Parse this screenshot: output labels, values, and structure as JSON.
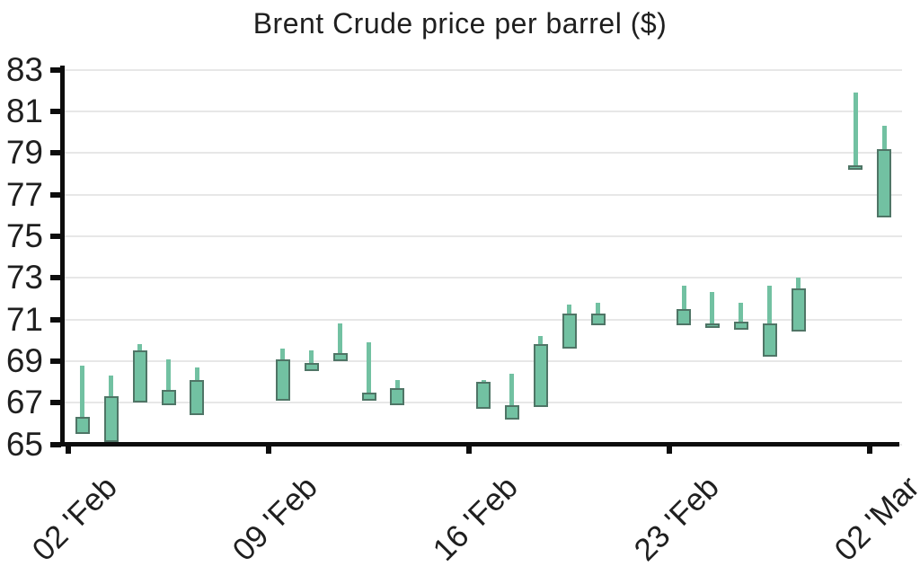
{
  "chart_title": "Brent Crude price per barrel ($)",
  "colors": {
    "background": "#ffffff",
    "candle_fill": "#72c1a2",
    "candle_border": "#4f7566",
    "axis": "#0d0d0d",
    "grid": "#e7e7e7",
    "text": "#1f1f1f"
  },
  "chart_data": {
    "type": "candlestick",
    "title": "Brent Crude price per barrel ($)",
    "xlabel": "",
    "ylabel": "",
    "ylim": [
      65,
      83
    ],
    "y_ticks": [
      83,
      81,
      79,
      77,
      75,
      73,
      71,
      69,
      67,
      65
    ],
    "grid": "horizontal",
    "legend": "none",
    "x_axis_unit": "days offset from 02 Feb tick",
    "x_ticks": [
      {
        "day": 0,
        "label": "02 'Feb"
      },
      {
        "day": 7,
        "label": "09 'Feb"
      },
      {
        "day": 14,
        "label": "16 'Feb"
      },
      {
        "day": 21,
        "label": "23 'Feb"
      },
      {
        "day": 28,
        "label": "02 'Mar"
      }
    ],
    "candles": [
      {
        "day": 0.5,
        "high": 68.8,
        "low": 65.5,
        "body_top": 66.3,
        "body_bottom": 65.5
      },
      {
        "day": 1.5,
        "high": 68.3,
        "low": 65.1,
        "body_top": 67.3,
        "body_bottom": 65.1
      },
      {
        "day": 2.5,
        "high": 69.8,
        "low": 67.0,
        "body_top": 69.5,
        "body_bottom": 67.0
      },
      {
        "day": 3.5,
        "high": 69.1,
        "low": 66.9,
        "body_top": 67.6,
        "body_bottom": 66.9
      },
      {
        "day": 4.5,
        "high": 68.7,
        "low": 66.4,
        "body_top": 68.1,
        "body_bottom": 66.4
      },
      {
        "day": 7.5,
        "high": 69.6,
        "low": 67.1,
        "body_top": 69.1,
        "body_bottom": 67.1
      },
      {
        "day": 8.5,
        "high": 69.5,
        "low": 68.5,
        "body_top": 68.9,
        "body_bottom": 68.5
      },
      {
        "day": 9.5,
        "high": 70.8,
        "low": 69.0,
        "body_top": 69.4,
        "body_bottom": 69.0
      },
      {
        "day": 10.5,
        "high": 69.9,
        "low": 67.1,
        "body_top": 67.5,
        "body_bottom": 67.1
      },
      {
        "day": 11.5,
        "high": 68.1,
        "low": 66.9,
        "body_top": 67.7,
        "body_bottom": 66.9
      },
      {
        "day": 14.5,
        "high": 68.1,
        "low": 66.7,
        "body_top": 68.0,
        "body_bottom": 66.7
      },
      {
        "day": 15.5,
        "high": 68.4,
        "low": 66.2,
        "body_top": 66.9,
        "body_bottom": 66.2
      },
      {
        "day": 16.5,
        "high": 70.2,
        "low": 66.8,
        "body_top": 69.8,
        "body_bottom": 66.8
      },
      {
        "day": 17.5,
        "high": 71.7,
        "low": 69.6,
        "body_top": 71.3,
        "body_bottom": 69.6
      },
      {
        "day": 18.5,
        "high": 71.8,
        "low": 70.7,
        "body_top": 71.3,
        "body_bottom": 70.7
      },
      {
        "day": 21.5,
        "high": 72.6,
        "low": 70.7,
        "body_top": 71.5,
        "body_bottom": 70.7
      },
      {
        "day": 22.5,
        "high": 72.3,
        "low": 70.7,
        "body_top": 70.8,
        "body_bottom": 70.7
      },
      {
        "day": 23.5,
        "high": 71.8,
        "low": 70.5,
        "body_top": 70.9,
        "body_bottom": 70.5
      },
      {
        "day": 24.5,
        "high": 72.6,
        "low": 69.2,
        "body_top": 70.8,
        "body_bottom": 69.2
      },
      {
        "day": 25.5,
        "high": 73.0,
        "low": 70.4,
        "body_top": 72.5,
        "body_bottom": 70.4
      },
      {
        "day": 27.5,
        "high": 81.9,
        "low": 78.2,
        "body_top": 78.4,
        "body_bottom": 78.2
      },
      {
        "day": 28.5,
        "high": 80.3,
        "low": 75.9,
        "body_top": 79.2,
        "body_bottom": 75.9
      }
    ]
  }
}
